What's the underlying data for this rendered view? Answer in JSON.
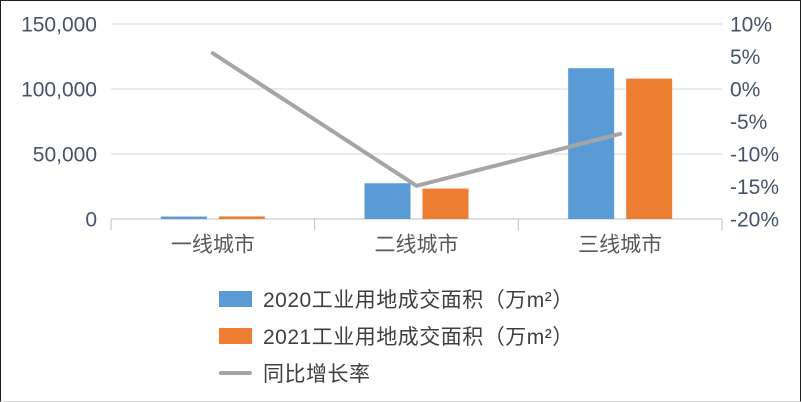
{
  "chart_data": {
    "type": "bar",
    "subtype": "grouped-bars-with-line-dual-axis",
    "title": "",
    "categories": [
      "一线城市",
      "二线城市",
      "三线城市"
    ],
    "series": [
      {
        "name": "2020工业用地成交面积（万m²）",
        "type": "bar",
        "axis": "left",
        "color": "#5B9BD5",
        "values": [
          1900,
          27500,
          116000
        ]
      },
      {
        "name": "2021工业用地成交面积（万m²）",
        "type": "bar",
        "axis": "left",
        "color": "#ED7D31",
        "values": [
          2000,
          23400,
          108000
        ]
      },
      {
        "name": "同比增长率",
        "type": "line",
        "axis": "right",
        "color": "#A5A5A5",
        "values_pct": [
          5.5,
          -14.9,
          -6.9
        ]
      }
    ],
    "axes": {
      "left": {
        "min": 0,
        "max": 150000,
        "tick_values": [
          150000,
          100000,
          50000,
          0
        ],
        "tick_labels": [
          "150,000",
          "100,000",
          "50,000",
          "0"
        ]
      },
      "right": {
        "min": -20,
        "max": 10,
        "tick_values": [
          10,
          5,
          0,
          -5,
          -10,
          -15,
          -20
        ],
        "tick_labels": [
          "10%",
          "5%",
          "0%",
          "-5%",
          "-10%",
          "-15%",
          "-20%"
        ]
      }
    },
    "grid": true,
    "legend_position": "bottom-left"
  },
  "style": {
    "gridline_color": "#D9D9D9",
    "axis_line_color": "#BFBFBF",
    "axis_label_color": "#44546A",
    "category_label_color": "#595959",
    "legend_text_color": "#3F3F3F",
    "background": "#FFFFFF",
    "frame_border_color": "#1F1F1F"
  }
}
